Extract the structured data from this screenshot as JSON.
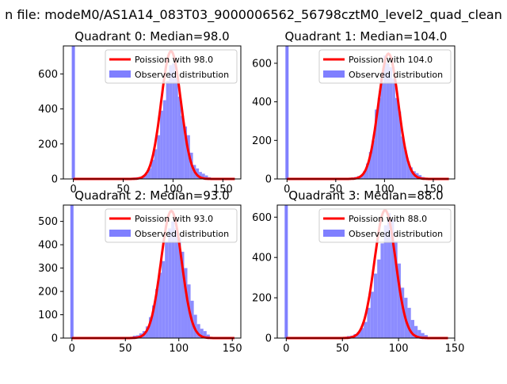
{
  "suptitle": "n file: modeM0/AS1A14_083T03_9000006562_56798cztM0_level2_quad_clean",
  "colors": {
    "hist": "#7f7fff",
    "fit": "#ff0000",
    "spike": "#8080ff"
  },
  "chart_data": [
    {
      "type": "bar",
      "title": "Quadrant 0: Median=98.0",
      "median": 98.0,
      "xlim": [
        -10,
        168
      ],
      "ylim": [
        0,
        760
      ],
      "xticks": [
        0,
        50,
        100,
        150
      ],
      "yticks": [
        0,
        200,
        400,
        600
      ],
      "spike": {
        "x": 0,
        "height": 760
      },
      "poisson_peak": 730,
      "bins": [
        60,
        63,
        66,
        69,
        72,
        75,
        78,
        81,
        84,
        87,
        90,
        93,
        96,
        99,
        102,
        105,
        108,
        111,
        114,
        117,
        120,
        123,
        126,
        129,
        132,
        135
      ],
      "values": [
        8,
        10,
        12,
        20,
        30,
        60,
        110,
        170,
        250,
        390,
        450,
        560,
        650,
        660,
        580,
        470,
        360,
        300,
        250,
        150,
        80,
        60,
        40,
        30,
        20,
        10
      ],
      "legend": {
        "fit": "Poission with 98.0",
        "observed": "Observed distribution"
      }
    },
    {
      "type": "bar",
      "title": "Quadrant 1: Median=104.0",
      "median": 104.0,
      "xlim": [
        -10,
        172
      ],
      "ylim": [
        0,
        690
      ],
      "xticks": [
        0,
        50,
        100,
        150
      ],
      "yticks": [
        0,
        200,
        400,
        600
      ],
      "spike": {
        "x": 0,
        "height": 690
      },
      "poisson_peak": 650,
      "bins": [
        66,
        69,
        72,
        75,
        78,
        81,
        84,
        87,
        90,
        93,
        96,
        99,
        102,
        105,
        108,
        111,
        114,
        117,
        120,
        123,
        126,
        129,
        132,
        135,
        138
      ],
      "values": [
        8,
        10,
        15,
        20,
        40,
        80,
        140,
        200,
        360,
        420,
        500,
        640,
        600,
        580,
        520,
        420,
        350,
        220,
        150,
        90,
        60,
        40,
        30,
        20,
        10
      ],
      "legend": {
        "fit": "Poission with 104.0",
        "observed": "Observed distribution"
      }
    },
    {
      "type": "bar",
      "title": "Quadrant 2: Median=93.0",
      "median": 93.0,
      "xlim": [
        -8,
        158
      ],
      "ylim": [
        0,
        570
      ],
      "xticks": [
        0,
        50,
        100,
        150
      ],
      "yticks": [
        0,
        100,
        200,
        300,
        400,
        500
      ],
      "spike": {
        "x": 0,
        "height": 570
      },
      "poisson_peak": 545,
      "bins": [
        57,
        60,
        63,
        66,
        69,
        72,
        75,
        78,
        81,
        84,
        87,
        90,
        93,
        96,
        99,
        102,
        105,
        108,
        111,
        114,
        117,
        120,
        123,
        126
      ],
      "values": [
        10,
        12,
        20,
        30,
        50,
        90,
        140,
        210,
        280,
        330,
        410,
        470,
        500,
        470,
        430,
        370,
        300,
        230,
        160,
        100,
        60,
        40,
        30,
        15
      ],
      "legend": {
        "fit": "Poission with 93.0",
        "observed": "Observed distribution"
      }
    },
    {
      "type": "bar",
      "title": "Quadrant 3: Median=88.0",
      "median": 88.0,
      "xlim": [
        -8,
        150
      ],
      "ylim": [
        0,
        660
      ],
      "xticks": [
        0,
        50,
        100,
        150
      ],
      "yticks": [
        0,
        200,
        400,
        600
      ],
      "spike": {
        "x": 0,
        "height": 660
      },
      "poisson_peak": 635,
      "bins": [
        54,
        57,
        60,
        63,
        66,
        69,
        72,
        75,
        78,
        81,
        84,
        87,
        90,
        93,
        96,
        99,
        102,
        105,
        108,
        111,
        114,
        117,
        120,
        123
      ],
      "values": [
        10,
        12,
        20,
        30,
        50,
        80,
        150,
        230,
        320,
        390,
        470,
        560,
        620,
        590,
        480,
        370,
        250,
        200,
        150,
        90,
        60,
        40,
        25,
        15
      ],
      "legend": {
        "fit": "Poission with 88.0",
        "observed": "Observed distribution"
      }
    }
  ]
}
